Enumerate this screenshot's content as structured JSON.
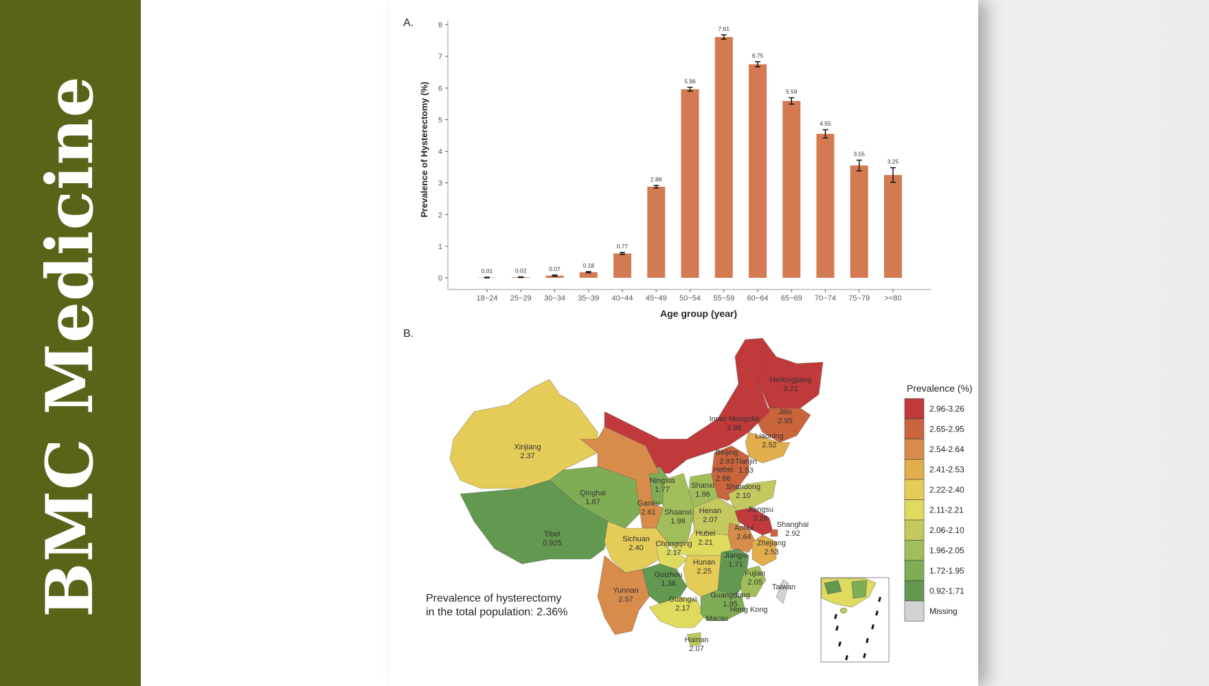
{
  "sidebar": {
    "brand": "BMC Medicine",
    "color": "#5b6319"
  },
  "panel_a_label": "A.",
  "panel_b_label": "B.",
  "chart_data": [
    {
      "type": "bar",
      "title": "",
      "xlabel": "Age group (year)",
      "ylabel": "Prevalence of Hysterectomy (%)",
      "ylim": [
        0,
        8
      ],
      "yticks": [
        "0",
        "1",
        "2",
        "3",
        "4",
        "5",
        "6",
        "7",
        "8"
      ],
      "categories": [
        "18~24",
        "25~29",
        "30~34",
        "35~39",
        "40~44",
        "45~49",
        "50~54",
        "55~59",
        "60~64",
        "65~69",
        "70~74",
        "75~79",
        ">=80"
      ],
      "values": [
        0.01,
        0.02,
        0.07,
        0.18,
        0.77,
        2.88,
        5.96,
        7.61,
        6.75,
        5.59,
        4.55,
        3.55,
        3.25
      ],
      "value_labels": [
        "0.01",
        "0.02",
        "0.07",
        "0.18",
        "0.77",
        "2.88",
        "5.96",
        "7.61",
        "6.75",
        "5.59",
        "4.55",
        "3.55",
        "3.25"
      ],
      "error": [
        0.01,
        0.01,
        0.02,
        0.02,
        0.03,
        0.04,
        0.06,
        0.07,
        0.08,
        0.1,
        0.13,
        0.17,
        0.23
      ],
      "bar_color": "#d47a52",
      "grid": false
    },
    {
      "type": "choropleth",
      "annotation": [
        "Prevalence of hysterectomy",
        "in the total population: 2.36%"
      ],
      "legend_title": "Prevalence (%)",
      "legend_position": "right",
      "legend": [
        {
          "label": "2.96-3.26",
          "color": "#c0393b"
        },
        {
          "label": "2.65-2.95",
          "color": "#c9643c"
        },
        {
          "label": "2.54-2.64",
          "color": "#d88c4c"
        },
        {
          "label": "2.41-2.53",
          "color": "#e2ad4d"
        },
        {
          "label": "2.22-2.40",
          "color": "#e5cb57"
        },
        {
          "label": "2.11-2.21",
          "color": "#dfdb5f"
        },
        {
          "label": "2.06-2.10",
          "color": "#c3c95e"
        },
        {
          "label": "1.96-2.05",
          "color": "#a2be5b"
        },
        {
          "label": "1.72-1.95",
          "color": "#7fad55"
        },
        {
          "label": "0.92-1.71",
          "color": "#62984f"
        },
        {
          "label": "Missing",
          "color": "#d3d3d3"
        }
      ],
      "regions": [
        {
          "name": "Heilongjiang",
          "value": "3.21"
        },
        {
          "name": "Jilin",
          "value": "2.95"
        },
        {
          "name": "Inner Mongolia",
          "value": "2.98"
        },
        {
          "name": "Liaoning",
          "value": "2.52"
        },
        {
          "name": "Xinjiang",
          "value": "2.37"
        },
        {
          "name": "Beijing",
          "value": "2.93"
        },
        {
          "name": "Tianjin",
          "value": "1.53"
        },
        {
          "name": "Hebei",
          "value": "2.66"
        },
        {
          "name": "Ningxia",
          "value": "1.77"
        },
        {
          "name": "Shanxi",
          "value": "1.96"
        },
        {
          "name": "Shandong",
          "value": "2.10"
        },
        {
          "name": "Qinghai",
          "value": "1.87"
        },
        {
          "name": "Gansu",
          "value": "2.61"
        },
        {
          "name": "Shaanxi",
          "value": "1.98"
        },
        {
          "name": "Henan",
          "value": "2.07"
        },
        {
          "name": "Jiangsu",
          "value": "3.26"
        },
        {
          "name": "Shanghai",
          "value": "2.92"
        },
        {
          "name": "Anhui",
          "value": "2.64"
        },
        {
          "name": "Tibet",
          "value": "0.925"
        },
        {
          "name": "Hubei",
          "value": "2.21"
        },
        {
          "name": "Sichuan",
          "value": "2.40"
        },
        {
          "name": "Chongqing",
          "value": "2.17"
        },
        {
          "name": "Zhejiang",
          "value": "2.53"
        },
        {
          "name": "Hunan",
          "value": "2.25"
        },
        {
          "name": "Jiangxi",
          "value": "1.71"
        },
        {
          "name": "Guizhou",
          "value": "1.38"
        },
        {
          "name": "Fujian",
          "value": "2.05"
        },
        {
          "name": "Yunnan",
          "value": "2.57"
        },
        {
          "name": "Guangxi",
          "value": "2.17"
        },
        {
          "name": "Guangdong",
          "value": "1.95"
        },
        {
          "name": "Hainan",
          "value": "2.07"
        },
        {
          "name": "Taiwan",
          "value": ""
        },
        {
          "name": "Hong Kong",
          "value": ""
        },
        {
          "name": "Macau",
          "value": ""
        }
      ]
    }
  ]
}
